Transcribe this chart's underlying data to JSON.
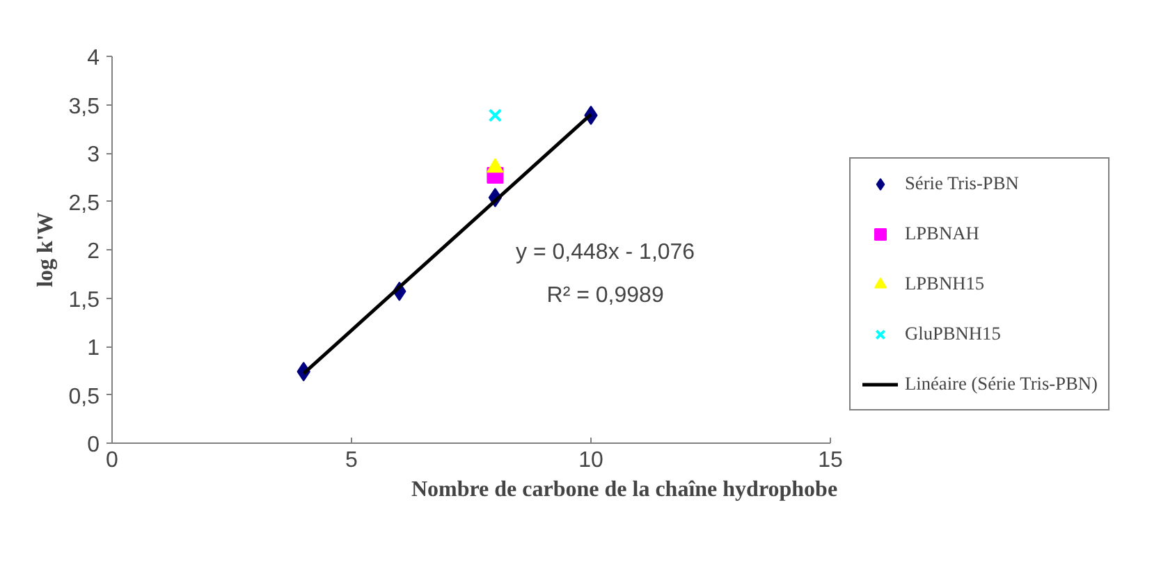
{
  "chart_data": {
    "type": "scatter",
    "xlabel": "Nombre de carbone de la chaîne hydrophobe",
    "ylabel": "log k'W",
    "xlim": [
      0,
      15
    ],
    "xticks": [
      0,
      5,
      10,
      15
    ],
    "ylim": [
      0,
      4
    ],
    "yticks": [
      0,
      {
        "value": 0.5,
        "label": "0,5"
      },
      1,
      {
        "value": 1.5,
        "label": "1,5"
      },
      2,
      {
        "value": 2.5,
        "label": "2,5"
      },
      3,
      {
        "value": 3.5,
        "label": "3,5"
      },
      4
    ],
    "grid": false,
    "legend": "right",
    "annotations": [
      "y = 0,448x - 1,076",
      "R² = 0,9989"
    ],
    "series": [
      {
        "name": "Série Tris-PBN",
        "marker": "diamond",
        "color": "#000080",
        "x": [
          4,
          6,
          8,
          10
        ],
        "values": [
          0.74,
          1.57,
          2.54,
          3.39
        ]
      },
      {
        "name": "LPBNAH",
        "marker": "square",
        "color": "#ff00ff",
        "x": [
          8
        ],
        "values": [
          2.77
        ]
      },
      {
        "name": "LPBNH15",
        "marker": "triangle",
        "color": "#ffff00",
        "x": [
          8
        ],
        "values": [
          2.85
        ]
      },
      {
        "name": "GluPBNH15",
        "marker": "cross",
        "color": "#00ffff",
        "x": [
          8
        ],
        "values": [
          3.39
        ]
      },
      {
        "name": "Linéaire (Série Tris-PBN)",
        "type": "line",
        "line_style": "solid",
        "color": "#000000",
        "x": [
          4,
          10
        ],
        "values": [
          0.72,
          3.4
        ]
      }
    ]
  }
}
